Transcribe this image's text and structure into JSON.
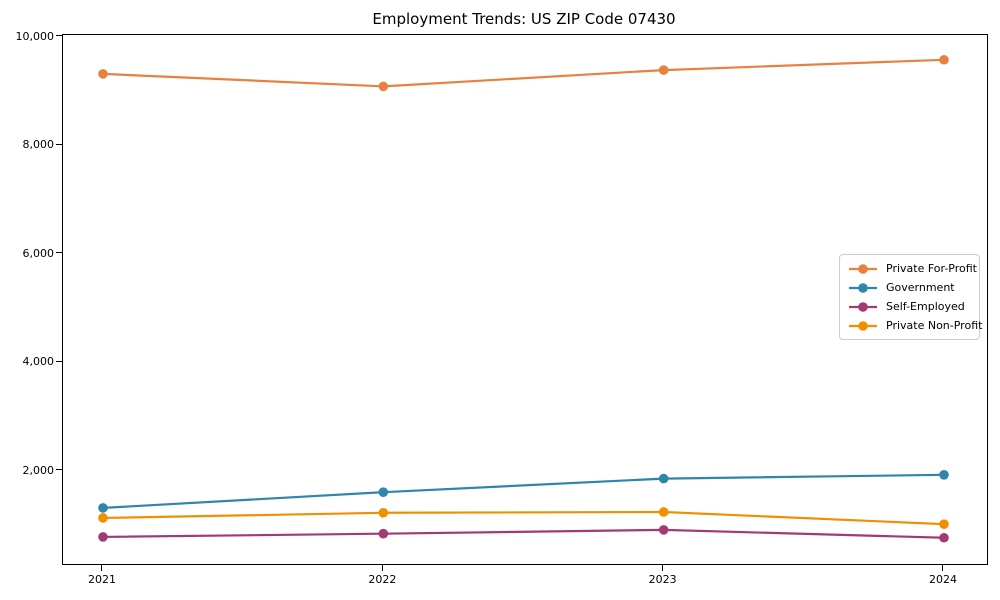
{
  "title": "Employment Trends: US ZIP Code 07430",
  "axis_color": "#000000",
  "legend_border_color": "#cccccc",
  "chart_data": {
    "type": "line",
    "title": "Employment Trends: US ZIP Code 07430",
    "xlabel": "",
    "ylabel": "",
    "grid": false,
    "legend_position": "center-right",
    "x": [
      2021,
      2022,
      2023,
      2024
    ],
    "x_tick_labels": [
      "2021",
      "2022",
      "2023",
      "2024"
    ],
    "y_ticks": [
      2000,
      4000,
      6000,
      8000,
      10000
    ],
    "y_tick_labels": [
      "2,000",
      "4,000",
      "6,000",
      "8,000",
      "10,000"
    ],
    "ylim": [
      286,
      10037
    ],
    "series": [
      {
        "name": "Private For-Profit",
        "color": "#E8813E",
        "values": [
          9320,
          9090,
          9390,
          9580
        ]
      },
      {
        "name": "Government",
        "color": "#2E86AB",
        "values": [
          1320,
          1610,
          1860,
          1930
        ]
      },
      {
        "name": "Self-Employed",
        "color": "#A23B72",
        "values": [
          785,
          845,
          915,
          770
        ]
      },
      {
        "name": "Private Non-Profit",
        "color": "#F18F01",
        "values": [
          1135,
          1230,
          1245,
          1020
        ]
      }
    ]
  }
}
